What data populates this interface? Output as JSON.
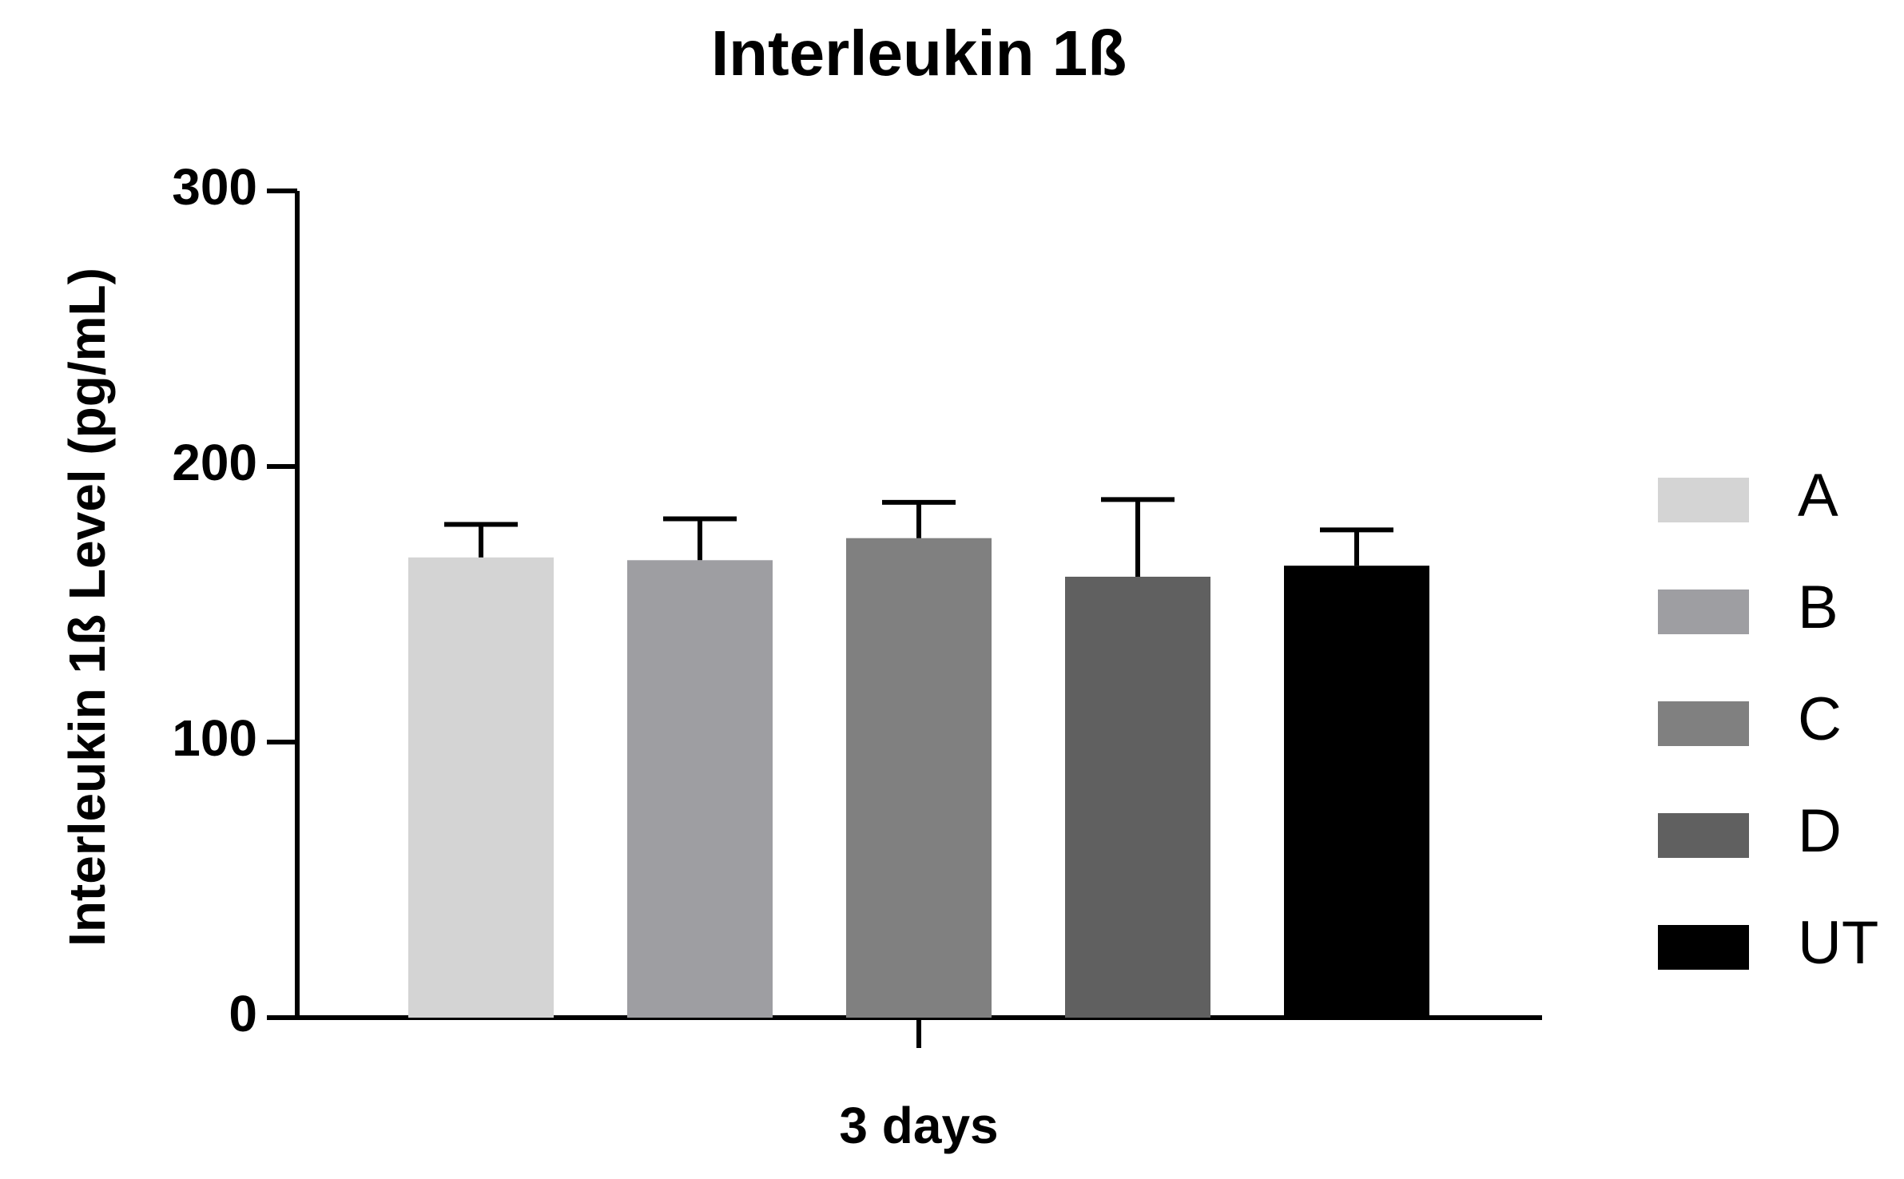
{
  "chart_data": {
    "type": "bar",
    "title": "Interleukin 1ß",
    "y_label": "Interleukin 1ß Level (pg/mL)",
    "categories": [
      "3 days"
    ],
    "series": [
      {
        "name": "A",
        "color": "#d4d4d4",
        "values": [
          167
        ],
        "errors": [
          12
        ]
      },
      {
        "name": "B",
        "color": "#9e9ea2",
        "values": [
          166
        ],
        "errors": [
          15
        ]
      },
      {
        "name": "C",
        "color": "#808080",
        "values": [
          174
        ],
        "errors": [
          13
        ]
      },
      {
        "name": "D",
        "color": "#606060",
        "values": [
          160
        ],
        "errors": [
          28
        ]
      },
      {
        "name": "UT",
        "color": "#000000",
        "values": [
          164
        ],
        "errors": [
          13
        ]
      }
    ],
    "ylim": [
      0,
      300
    ],
    "yticks": [
      0,
      100,
      200,
      300
    ],
    "legend": "right"
  }
}
